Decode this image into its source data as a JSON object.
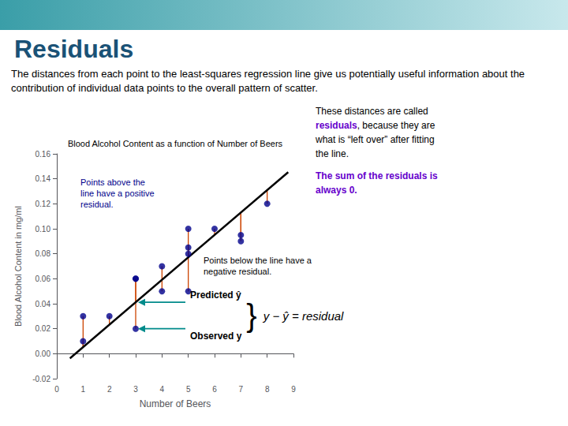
{
  "chart_data": {
    "type": "scatter",
    "page_title": "Residuals",
    "title_color": "#1a5276",
    "header_gradient": [
      "#3a9ea8",
      "#c8e8ec"
    ],
    "body_text": "The distances from each point to the least-squares regression line give us potentially useful information about the contribution of individual data points to the overall pattern of scatter.",
    "title": "Blood Alcohol Content as a function of Number of Beers",
    "x_label": "Number of Beers",
    "y_label": "Blood Alcohol Content in mg/ml",
    "xlim": [
      0,
      9
    ],
    "xticks": [
      0,
      1,
      2,
      3,
      4,
      5,
      6,
      7,
      8,
      9
    ],
    "ylim": [
      -0.02,
      0.16
    ],
    "yticks": [
      {
        "value": -0.02,
        "label": "-0.02"
      },
      {
        "value": 0,
        "label": "0.00"
      },
      {
        "value": 0.02,
        "label": "0.02"
      },
      {
        "value": 0.04,
        "label": "0.04"
      },
      {
        "value": 0.06,
        "label": "0.06"
      },
      {
        "value": 0.08,
        "label": "0.08"
      },
      {
        "value": 0.1,
        "label": "0.10"
      },
      {
        "value": 0.12,
        "label": "0.12"
      },
      {
        "value": 0.14,
        "label": "0.14"
      },
      {
        "value": 0.16,
        "label": "0.16"
      }
    ],
    "grid": false,
    "series": [
      {
        "type": "line",
        "color": "#000000",
        "x": [
          0.5,
          8.8
        ],
        "values": [
          -0.00372,
          0.145348
        ]
      },
      {
        "type": "residual",
        "color": "#cc4400",
        "x": [
          1,
          1,
          2,
          3,
          3,
          3,
          4,
          4,
          5,
          5,
          5,
          5,
          6,
          7,
          7,
          8
        ],
        "from": [
          0.00526,
          0.00526,
          0.02322,
          0.04118,
          0.04118,
          0.04118,
          0.05914,
          0.05914,
          0.0771,
          0.0771,
          0.0771,
          0.0771,
          0.09506,
          0.11302,
          0.11302,
          0.13098
        ],
        "values": [
          0.01,
          0.03,
          0.03,
          0.06,
          0.06,
          0.02,
          0.07,
          0.05,
          0.1,
          0.085,
          0.08,
          0.05,
          0.1,
          0.09,
          0.095,
          0.12
        ]
      },
      {
        "type": "scatter",
        "color": "#00008b",
        "marker": "circle",
        "x": [
          1,
          1,
          2,
          3,
          3,
          3,
          4,
          4,
          5,
          5,
          5,
          5,
          6,
          7,
          7,
          8
        ],
        "values": [
          0.01,
          0.03,
          0.03,
          0.06,
          0.06,
          0.02,
          0.07,
          0.05,
          0.1,
          0.085,
          0.08,
          0.05,
          0.1,
          0.09,
          0.095,
          0.12
        ]
      }
    ],
    "annotations": [
      {
        "type": "arrow",
        "x": 3,
        "y": 0.04118,
        "text": "Predicted ŷ",
        "color": "#008b8b"
      },
      {
        "type": "arrow",
        "x": 3,
        "y": 0.02,
        "text": "Observed y",
        "color": "#008b8b"
      },
      {
        "type": "brace",
        "text": "}"
      },
      {
        "type": "formula",
        "text": "y − ŷ = residual"
      },
      {
        "type": "note",
        "text": "Points above the\nline have a positive\nresidual.",
        "color": "#00008b"
      },
      {
        "type": "note",
        "text": "Points below the line have a\nnegative residual."
      }
    ],
    "side_text": [
      [
        [
          {
            "text": "These distances are called"
          }
        ],
        [
          {
            "text": "residuals",
            "color": "#6600cc"
          },
          {
            "text": ", because they are"
          }
        ],
        [
          {
            "text": "what is “left over” after fitting"
          }
        ],
        [
          {
            "text": "the line."
          }
        ]
      ],
      [
        [
          {
            "text": "The sum of the residuals is",
            "color": "#6600cc"
          }
        ],
        [
          {
            "text": "always 0.",
            "color": "#6600cc"
          }
        ]
      ]
    ]
  }
}
